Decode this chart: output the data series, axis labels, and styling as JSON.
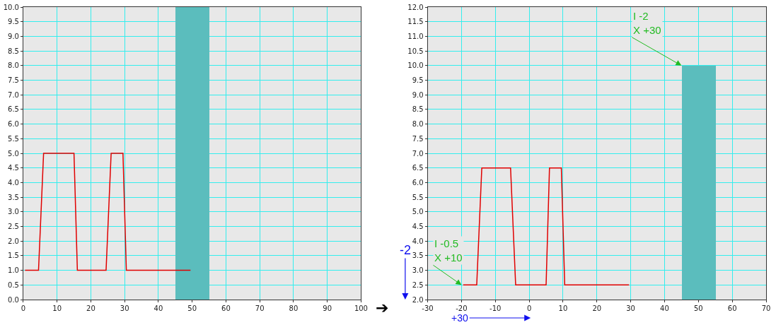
{
  "chart_data": [
    {
      "type": "line",
      "xlim": [
        0,
        100
      ],
      "xticks": [
        0,
        10,
        20,
        30,
        40,
        50,
        60,
        70,
        80,
        90,
        100
      ],
      "ylim": [
        0,
        10
      ],
      "yticks": [
        {
          "value": 0,
          "label": "0.0"
        },
        0.5,
        {
          "value": 1,
          "label": "1.0"
        },
        1.5,
        {
          "value": 2,
          "label": "2.0"
        },
        2.5,
        {
          "value": 3,
          "label": "3.0"
        },
        3.5,
        {
          "value": 4,
          "label": "4.0"
        },
        4.5,
        {
          "value": 5,
          "label": "5.0"
        },
        5.5,
        {
          "value": 6,
          "label": "6.0"
        },
        6.5,
        {
          "value": 7,
          "label": "7.0"
        },
        7.5,
        {
          "value": 8,
          "label": "8.0"
        },
        8.5,
        {
          "value": 9,
          "label": "9.0"
        },
        9.5,
        {
          "value": 10,
          "label": "10.0"
        }
      ],
      "grid": true,
      "series": [
        {
          "type": "bar",
          "color": "#5bbdbd",
          "x": [
            50
          ],
          "values": [
            10
          ]
        },
        {
          "type": "line",
          "color": "#e00000",
          "x": [
            0.5,
            4.5,
            6,
            15,
            16,
            24.5,
            26,
            29.5,
            30.5,
            49.5
          ],
          "values": [
            1,
            1,
            5,
            5,
            1,
            1,
            5,
            5,
            1,
            1
          ]
        }
      ],
      "annotations": [
        "➔"
      ]
    },
    {
      "type": "line",
      "xlim": [
        -30,
        70
      ],
      "xticks": [
        -30,
        -20,
        -10,
        0,
        10,
        20,
        30,
        40,
        50,
        60,
        70
      ],
      "ylim": [
        2,
        12
      ],
      "yticks": [
        {
          "value": 2,
          "label": "2.0"
        },
        2.5,
        {
          "value": 3,
          "label": "3.0"
        },
        3.5,
        {
          "value": 4,
          "label": "4.0"
        },
        4.5,
        {
          "value": 5,
          "label": "5.0"
        },
        5.5,
        {
          "value": 6,
          "label": "6.0"
        },
        6.5,
        {
          "value": 7,
          "label": "7.0"
        },
        7.5,
        {
          "value": 8,
          "label": "8.0"
        },
        8.5,
        {
          "value": 9,
          "label": "9.0"
        },
        9.5,
        {
          "value": 10,
          "label": "10.0"
        },
        10.5,
        {
          "value": 11,
          "label": "11.0"
        },
        11.5,
        {
          "value": 12,
          "label": "12.0"
        }
      ],
      "grid": true,
      "series": [
        {
          "type": "bar",
          "color": "#5bbdbd",
          "x": [
            50
          ],
          "values": [
            10
          ]
        },
        {
          "type": "line",
          "color": "#e00000",
          "x": [
            -19.5,
            -15.5,
            -14,
            -5.5,
            -4,
            5,
            6,
            9.5,
            10.5,
            29.5
          ],
          "values": [
            2.5,
            2.5,
            6.5,
            6.5,
            2.5,
            2.5,
            6.5,
            6.5,
            2.5,
            2.5
          ]
        }
      ],
      "annotations": [
        {
          "text": "I -2\nX +30",
          "x": 45,
          "y": 10
        },
        {
          "text": "I -0.5\nX +10",
          "x": -20,
          "y": 2.5
        },
        "-2",
        "+30"
      ]
    }
  ]
}
